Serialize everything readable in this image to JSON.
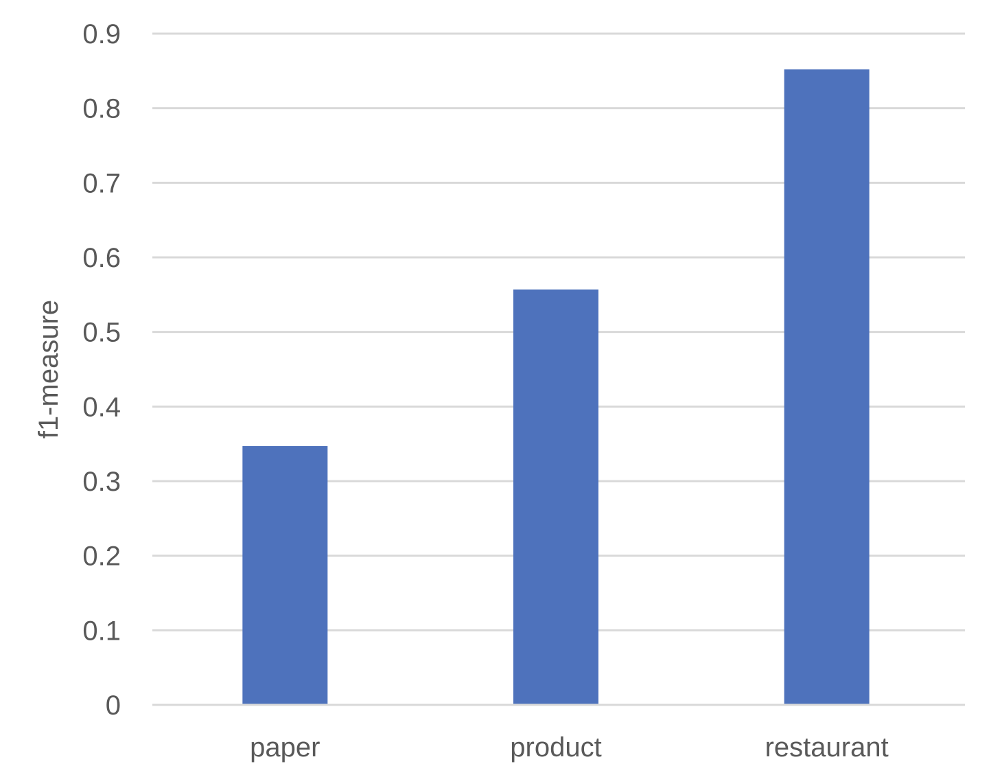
{
  "chart_data": {
    "type": "bar",
    "categories": [
      "paper",
      "product",
      "restaurant"
    ],
    "values": [
      0.347,
      0.557,
      0.852
    ],
    "ylabel": "f1-measure",
    "xlabel": "",
    "ylim": [
      0,
      0.9
    ],
    "yticks": [
      "0",
      "0.1",
      "0.2",
      "0.3",
      "0.4",
      "0.5",
      "0.6",
      "0.7",
      "0.8",
      "0.9"
    ],
    "grid": true,
    "legend": "none"
  },
  "colors": {
    "bar": "#4e72bc",
    "grid": "#d9d9d9",
    "text": "#595959"
  }
}
